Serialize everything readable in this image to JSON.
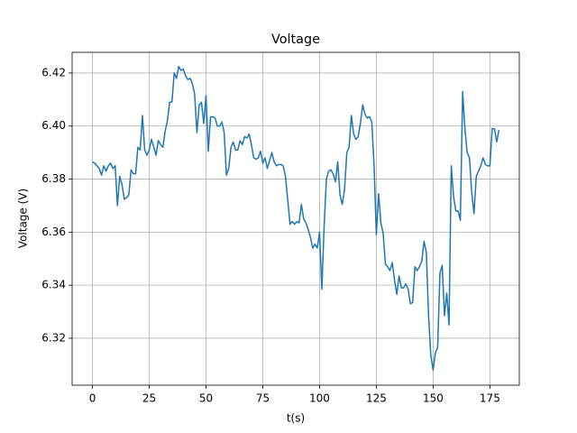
{
  "chart_data": {
    "type": "line",
    "title": "Voltage",
    "x_label": "t(s)",
    "y_label": "Voltage (V)",
    "color": "#1f77b4",
    "grid": true,
    "xlim": [
      -8.95,
      187.95
    ],
    "ylim": [
      6.3023,
      6.4278
    ],
    "xticks": [
      0,
      25,
      50,
      75,
      100,
      125,
      150,
      175
    ],
    "yticks": [
      6.32,
      6.34,
      6.36,
      6.38,
      {
        "value": 6.4,
        "label": "6.40"
      },
      6.42
    ],
    "x": [
      0,
      1,
      2,
      3,
      4,
      5,
      6,
      7,
      8,
      9,
      10,
      11,
      12,
      13,
      14,
      15,
      16,
      17,
      18,
      19,
      20,
      21,
      22,
      23,
      24,
      25,
      26,
      27,
      28,
      29,
      30,
      31,
      32,
      33,
      34,
      35,
      36,
      37,
      38,
      39,
      40,
      41,
      42,
      43,
      44,
      45,
      46,
      47,
      48,
      49,
      50,
      51,
      52,
      53,
      54,
      55,
      56,
      57,
      58,
      59,
      60,
      61,
      62,
      63,
      64,
      65,
      66,
      67,
      68,
      69,
      70,
      71,
      72,
      73,
      74,
      75,
      76,
      77,
      78,
      79,
      80,
      81,
      82,
      83,
      84,
      85,
      86,
      87,
      88,
      89,
      90,
      91,
      92,
      93,
      94,
      95,
      96,
      97,
      98,
      99,
      100,
      101,
      102,
      103,
      104,
      105,
      106,
      107,
      108,
      109,
      110,
      111,
      112,
      113,
      114,
      115,
      116,
      117,
      118,
      119,
      120,
      121,
      122,
      123,
      124,
      125,
      126,
      127,
      128,
      129,
      130,
      131,
      132,
      133,
      134,
      135,
      136,
      137,
      138,
      139,
      140,
      141,
      142,
      143,
      144,
      145,
      146,
      147,
      148,
      149,
      150,
      151,
      152,
      153,
      154,
      155,
      156,
      157,
      158,
      159,
      160,
      161,
      162,
      163,
      164,
      165,
      166,
      167,
      168,
      169,
      170,
      171,
      172,
      173,
      174,
      175,
      176,
      177,
      178,
      179
    ],
    "values": [
      6.3865,
      6.386,
      6.385,
      6.384,
      6.3815,
      6.385,
      6.383,
      6.385,
      6.386,
      6.384,
      6.385,
      6.37,
      6.381,
      6.378,
      6.3725,
      6.373,
      6.374,
      6.3835,
      6.382,
      6.382,
      6.392,
      6.391,
      6.404,
      6.391,
      6.389,
      6.391,
      6.395,
      6.392,
      6.389,
      6.3945,
      6.393,
      6.392,
      6.398,
      6.402,
      6.409,
      6.409,
      6.42,
      6.418,
      6.4225,
      6.421,
      6.4215,
      6.419,
      6.4175,
      6.418,
      6.416,
      6.412,
      6.3975,
      6.408,
      6.409,
      6.401,
      6.4115,
      6.3905,
      6.4035,
      6.4035,
      6.403,
      6.4,
      6.4,
      6.4015,
      6.3975,
      6.3815,
      6.384,
      6.392,
      6.394,
      6.391,
      6.391,
      6.3945,
      6.393,
      6.396,
      6.3955,
      6.397,
      6.393,
      6.388,
      6.3875,
      6.388,
      6.3905,
      6.386,
      6.388,
      6.384,
      6.387,
      6.39,
      6.3865,
      6.385,
      6.3855,
      6.3855,
      6.385,
      6.381,
      6.372,
      6.363,
      6.364,
      6.363,
      6.364,
      6.3635,
      6.3705,
      6.365,
      6.3635,
      6.361,
      6.358,
      6.354,
      6.3555,
      6.354,
      6.36,
      6.3385,
      6.362,
      6.38,
      6.383,
      6.3835,
      6.382,
      6.379,
      6.3865,
      6.374,
      6.3705,
      6.376,
      6.39,
      6.392,
      6.404,
      6.397,
      6.395,
      6.396,
      6.401,
      6.408,
      6.4045,
      6.403,
      6.4035,
      6.4015,
      6.385,
      6.359,
      6.3745,
      6.3635,
      6.3595,
      6.348,
      6.347,
      6.3455,
      6.3485,
      6.342,
      6.3365,
      6.3435,
      6.339,
      6.339,
      6.3405,
      6.3385,
      6.333,
      6.3335,
      6.347,
      6.3455,
      6.347,
      6.349,
      6.3565,
      6.3525,
      6.3285,
      6.3135,
      6.308,
      6.3145,
      6.3165,
      6.3445,
      6.3475,
      6.3285,
      6.337,
      6.325,
      6.385,
      6.3735,
      6.368,
      6.368,
      6.3645,
      6.413,
      6.399,
      6.39,
      6.388,
      6.375,
      6.367,
      6.381,
      6.383,
      6.385,
      6.388,
      6.3855,
      6.385,
      6.385,
      6.399,
      6.399,
      6.394,
      6.3985
    ]
  }
}
